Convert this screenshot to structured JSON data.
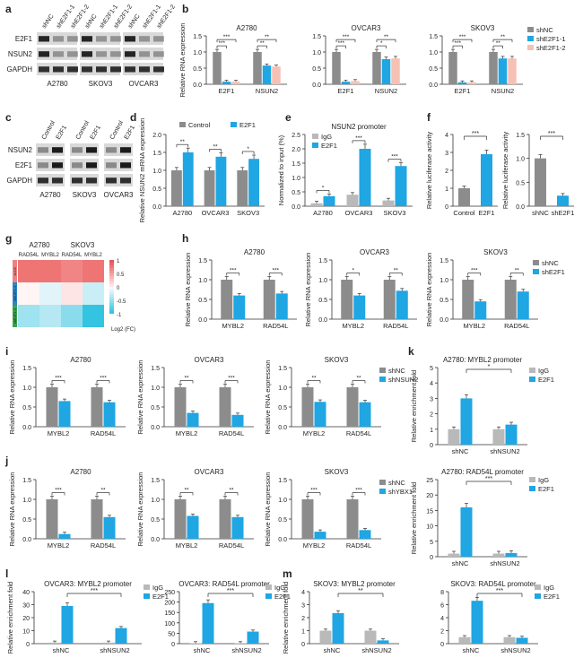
{
  "colors": {
    "gray": "#8c8c8c",
    "blue": "#1fa6e3",
    "pink": "#f6c1b4",
    "sig": "#222222",
    "lightgray": "#b9b9b9"
  },
  "panel_letters": [
    "a",
    "b",
    "c",
    "d",
    "e",
    "f",
    "g",
    "h",
    "i",
    "j",
    "k",
    "l",
    "m"
  ],
  "blots": {
    "a": {
      "lanes": [
        "shNC",
        "shE2F1-1",
        "shE2F1-2",
        "shNC",
        "shE2F1-1",
        "shE2F1-2",
        "shNC",
        "shE2F1-1",
        "shE2F1-2"
      ],
      "rows": [
        "E2F1",
        "NSUN2",
        "GAPDH"
      ],
      "groups": [
        "A2780",
        "SKOV3",
        "OVCAR3"
      ]
    },
    "c": {
      "lanes": [
        "Control",
        "E2F1",
        "Control",
        "E2F1",
        "Control",
        "E2F1"
      ],
      "rows": [
        "NSUN2",
        "E2F1",
        "GAPDH"
      ],
      "groups": [
        "A2780",
        "SKOV3",
        "OVCAR3"
      ]
    }
  },
  "heatmap_g": {
    "groups": [
      "A2780",
      "SKOV3"
    ],
    "columns": [
      "RAD54L",
      "MYBL2",
      "RAD54L",
      "MYBL2"
    ],
    "row_tags": [
      "shNC",
      "shE2F1-1",
      "shE2F1-2"
    ],
    "scale": [
      "1",
      "0.5",
      "0",
      "-0.5",
      "-1"
    ],
    "scale_label": "Log2 (FC)",
    "values": [
      [
        0.8,
        0.8,
        0.7,
        0.8
      ],
      [
        0.0,
        -0.1,
        0.1,
        -0.2
      ],
      [
        -0.4,
        -0.3,
        -0.5,
        -0.9
      ]
    ]
  },
  "chart_data": [
    {
      "id": "b1",
      "panel": "b",
      "type": "bar",
      "title": "A2780",
      "ylabel": "Relative RNA expression",
      "categories": [
        "E2F1",
        "NSUN2"
      ],
      "ylim": [
        0,
        1.5
      ],
      "yticks": [
        "0.0",
        "0.5",
        "1.0",
        "1.5"
      ],
      "series": [
        {
          "name": "shNC",
          "values": [
            1.0,
            1.0
          ]
        },
        {
          "name": "shE2F1-1",
          "values": [
            0.08,
            0.58
          ]
        },
        {
          "name": "shE2F1-2",
          "values": [
            0.08,
            0.55
          ]
        }
      ],
      "sig": [
        {
          "cat": 0,
          "a": 0,
          "b": 1,
          "text": "***"
        },
        {
          "cat": 0,
          "a": 0,
          "b": 2,
          "text": "***"
        },
        {
          "cat": 1,
          "a": 0,
          "b": 1,
          "text": "**"
        },
        {
          "cat": 1,
          "a": 0,
          "b": 2,
          "text": "**"
        }
      ]
    },
    {
      "id": "b2",
      "panel": "b",
      "type": "bar",
      "title": "OVCAR3",
      "ylabel": "",
      "categories": [
        "E2F1",
        "NSUN2"
      ],
      "ylim": [
        0,
        1.5
      ],
      "yticks": [
        "0.0",
        "0.5",
        "1.0",
        "1.5"
      ],
      "series": [
        {
          "name": "shNC",
          "values": [
            1.0,
            1.0
          ]
        },
        {
          "name": "shE2F1-1",
          "values": [
            0.08,
            0.78
          ]
        },
        {
          "name": "shE2F1-2",
          "values": [
            0.1,
            0.8
          ]
        }
      ],
      "sig": [
        {
          "cat": 0,
          "a": 0,
          "b": 1,
          "text": "***"
        },
        {
          "cat": 0,
          "a": 0,
          "b": 2,
          "text": "***"
        },
        {
          "cat": 1,
          "a": 0,
          "b": 1,
          "text": "*"
        },
        {
          "cat": 1,
          "a": 0,
          "b": 2,
          "text": "**"
        }
      ]
    },
    {
      "id": "b3",
      "panel": "b",
      "type": "bar",
      "title": "SKOV3",
      "ylabel": "",
      "categories": [
        "E2F1",
        "NSUN2"
      ],
      "ylim": [
        0,
        1.5
      ],
      "yticks": [
        "0.0",
        "0.5",
        "1.0",
        "1.5"
      ],
      "series": [
        {
          "name": "shNC",
          "values": [
            1.0,
            1.0
          ]
        },
        {
          "name": "shE2F1-1",
          "values": [
            0.06,
            0.8
          ]
        },
        {
          "name": "shE2F1-2",
          "values": [
            0.06,
            0.8
          ]
        }
      ],
      "sig": [
        {
          "cat": 0,
          "a": 0,
          "b": 1,
          "text": "***"
        },
        {
          "cat": 0,
          "a": 0,
          "b": 2,
          "text": "***"
        },
        {
          "cat": 1,
          "a": 0,
          "b": 1,
          "text": "**"
        },
        {
          "cat": 1,
          "a": 0,
          "b": 2,
          "text": "**"
        }
      ]
    },
    {
      "id": "d",
      "panel": "d",
      "type": "bar",
      "title": "",
      "ylabel": "Relative NSUN2 mRNA expression",
      "categories": [
        "A2780",
        "OVCAR3",
        "SKOV3"
      ],
      "ylim": [
        0,
        2.0
      ],
      "yticks": [
        "0.0",
        "0.5",
        "1.0",
        "1.5",
        "2.0"
      ],
      "series": [
        {
          "name": "Control",
          "values": [
            1.0,
            1.0,
            1.0
          ]
        },
        {
          "name": "E2F1",
          "values": [
            1.5,
            1.38,
            1.32
          ]
        }
      ],
      "sig": [
        {
          "cat": 0,
          "a": 0,
          "b": 1,
          "text": "**"
        },
        {
          "cat": 1,
          "a": 0,
          "b": 1,
          "text": "**"
        },
        {
          "cat": 2,
          "a": 0,
          "b": 1,
          "text": "*"
        }
      ]
    },
    {
      "id": "e",
      "panel": "e",
      "type": "bar",
      "title": "NSUN2 promoter",
      "ylabel": "Normalized to input (%)",
      "categories": [
        "A2780",
        "OVCAR3",
        "SKOV3"
      ],
      "ylim": [
        0,
        2.5
      ],
      "yticks": [
        "0.0",
        "0.5",
        "1.0",
        "1.5",
        "2.0",
        "2.5"
      ],
      "series": [
        {
          "name": "IgG",
          "values": [
            0.1,
            0.4,
            0.2
          ]
        },
        {
          "name": "E2F1",
          "values": [
            0.35,
            2.0,
            1.4
          ]
        }
      ],
      "sig": [
        {
          "cat": 0,
          "a": 0,
          "b": 1,
          "text": "*"
        },
        {
          "cat": 1,
          "a": 0,
          "b": 1,
          "text": "***"
        },
        {
          "cat": 2,
          "a": 0,
          "b": 1,
          "text": "***"
        }
      ]
    },
    {
      "id": "f1",
      "panel": "f",
      "type": "bar",
      "title": "",
      "ylabel": "Relative luciferase activity",
      "categories": [
        "Control",
        "E2F1"
      ],
      "ylim": [
        0,
        4
      ],
      "yticks": [
        "0",
        "1",
        "2",
        "3",
        "4"
      ],
      "series": [
        {
          "name": "",
          "values": [
            1.0,
            2.9
          ]
        }
      ],
      "sig": [
        {
          "span": [
            0,
            1
          ],
          "text": "***"
        }
      ]
    },
    {
      "id": "f2",
      "panel": "f",
      "type": "bar",
      "title": "",
      "ylabel": "Relative luciferase activity",
      "categories": [
        "shNC",
        "shE2F1"
      ],
      "ylim": [
        0,
        1.5
      ],
      "yticks": [
        "0.0",
        "0.5",
        "1.0",
        "1.5"
      ],
      "series": [
        {
          "name": "",
          "values": [
            1.0,
            0.22
          ]
        }
      ],
      "sig": [
        {
          "span": [
            0,
            1
          ],
          "text": "***"
        }
      ]
    },
    {
      "id": "h1",
      "panel": "h",
      "type": "bar",
      "title": "A2780",
      "ylabel": "Relative RNA expression",
      "categories": [
        "MYBL2",
        "RAD54L"
      ],
      "ylim": [
        0,
        1.5
      ],
      "yticks": [
        "0.0",
        "0.5",
        "1.0",
        "1.5"
      ],
      "series": [
        {
          "name": "shNC",
          "values": [
            1.0,
            1.0
          ]
        },
        {
          "name": "shE2F1",
          "values": [
            0.6,
            0.65
          ]
        }
      ],
      "sig": [
        {
          "cat": 0,
          "a": 0,
          "b": 1,
          "text": "***"
        },
        {
          "cat": 1,
          "a": 0,
          "b": 1,
          "text": "***"
        }
      ]
    },
    {
      "id": "h2",
      "panel": "h",
      "type": "bar",
      "title": "OVCAR3",
      "ylabel": "Relative RNA expression",
      "categories": [
        "MYBL2",
        "RAD54L"
      ],
      "ylim": [
        0,
        1.5
      ],
      "yticks": [
        "0.0",
        "0.5",
        "1.0",
        "1.5"
      ],
      "series": [
        {
          "name": "shNC",
          "values": [
            1.0,
            1.0
          ]
        },
        {
          "name": "shE2F1",
          "values": [
            0.6,
            0.72
          ]
        }
      ],
      "sig": [
        {
          "cat": 0,
          "a": 0,
          "b": 1,
          "text": "*"
        },
        {
          "cat": 1,
          "a": 0,
          "b": 1,
          "text": "**"
        }
      ]
    },
    {
      "id": "h3",
      "panel": "h",
      "type": "bar",
      "title": "SKOV3",
      "ylabel": "Relative RNA expression",
      "categories": [
        "MYBL2",
        "RAD54L"
      ],
      "ylim": [
        0,
        1.5
      ],
      "yticks": [
        "0.0",
        "0.5",
        "1.0",
        "1.5"
      ],
      "series": [
        {
          "name": "shNC",
          "values": [
            1.0,
            1.0
          ]
        },
        {
          "name": "shE2F1",
          "values": [
            0.45,
            0.7
          ]
        }
      ],
      "sig": [
        {
          "cat": 0,
          "a": 0,
          "b": 1,
          "text": "***"
        },
        {
          "cat": 1,
          "a": 0,
          "b": 1,
          "text": "**"
        }
      ]
    },
    {
      "id": "i1",
      "panel": "i",
      "type": "bar",
      "title": "A2780",
      "ylabel": "Relative RNA expression",
      "categories": [
        "MYBL2",
        "RAD54L"
      ],
      "ylim": [
        0,
        1.5
      ],
      "yticks": [
        "0.0",
        "0.5",
        "1.0",
        "1.5"
      ],
      "series": [
        {
          "name": "shNC",
          "values": [
            1.0,
            1.0
          ]
        },
        {
          "name": "shNSUN2",
          "values": [
            0.65,
            0.62
          ]
        }
      ],
      "sig": [
        {
          "cat": 0,
          "a": 0,
          "b": 1,
          "text": "***"
        },
        {
          "cat": 1,
          "a": 0,
          "b": 1,
          "text": "***"
        }
      ]
    },
    {
      "id": "i2",
      "panel": "i",
      "type": "bar",
      "title": "OVCAR3",
      "ylabel": "Relative RNA expression",
      "categories": [
        "MYBL2",
        "RAD54L"
      ],
      "ylim": [
        0,
        1.5
      ],
      "yticks": [
        "0.0",
        "0.5",
        "1.0",
        "1.5"
      ],
      "series": [
        {
          "name": "shNC",
          "values": [
            1.0,
            1.0
          ]
        },
        {
          "name": "shNSUN2",
          "values": [
            0.35,
            0.3
          ]
        }
      ],
      "sig": [
        {
          "cat": 0,
          "a": 0,
          "b": 1,
          "text": "**"
        },
        {
          "cat": 1,
          "a": 0,
          "b": 1,
          "text": "***"
        }
      ]
    },
    {
      "id": "i3",
      "panel": "i",
      "type": "bar",
      "title": "SKOV3",
      "ylabel": "Relative RNA expression",
      "categories": [
        "MYBL2",
        "RAD54L"
      ],
      "ylim": [
        0,
        1.5
      ],
      "yticks": [
        "0.0",
        "0.5",
        "1.0",
        "1.5"
      ],
      "series": [
        {
          "name": "shNC",
          "values": [
            1.0,
            1.0
          ]
        },
        {
          "name": "shNSUN2",
          "values": [
            0.63,
            0.62
          ]
        }
      ],
      "sig": [
        {
          "cat": 0,
          "a": 0,
          "b": 1,
          "text": "**"
        },
        {
          "cat": 1,
          "a": 0,
          "b": 1,
          "text": "**"
        }
      ]
    },
    {
      "id": "j1",
      "panel": "j",
      "type": "bar",
      "title": "A2780",
      "ylabel": "Relative RNA expression",
      "categories": [
        "MYBL2",
        "RAD54L"
      ],
      "ylim": [
        0,
        1.5
      ],
      "yticks": [
        "0.0",
        "0.5",
        "1.0",
        "1.5"
      ],
      "series": [
        {
          "name": "shNC",
          "values": [
            1.0,
            1.0
          ]
        },
        {
          "name": "shYBX1",
          "values": [
            0.12,
            0.55
          ]
        }
      ],
      "sig": [
        {
          "cat": 0,
          "a": 0,
          "b": 1,
          "text": "***"
        },
        {
          "cat": 1,
          "a": 0,
          "b": 1,
          "text": "**"
        }
      ]
    },
    {
      "id": "j2",
      "panel": "j",
      "type": "bar",
      "title": "OVCAR3",
      "ylabel": "Relative RNA expression",
      "categories": [
        "MYBL2",
        "RAD54L"
      ],
      "ylim": [
        0,
        1.5
      ],
      "yticks": [
        "0.0",
        "0.5",
        "1.0",
        "1.5"
      ],
      "series": [
        {
          "name": "shNC",
          "values": [
            1.0,
            1.0
          ]
        },
        {
          "name": "shYBX1",
          "values": [
            0.58,
            0.55
          ]
        }
      ],
      "sig": [
        {
          "cat": 0,
          "a": 0,
          "b": 1,
          "text": "**"
        },
        {
          "cat": 1,
          "a": 0,
          "b": 1,
          "text": "**"
        }
      ]
    },
    {
      "id": "j3",
      "panel": "j",
      "type": "bar",
      "title": "SKOV3",
      "ylabel": "Relative RNA expression",
      "categories": [
        "MYBL2",
        "RAD54L"
      ],
      "ylim": [
        0,
        1.5
      ],
      "yticks": [
        "0.0",
        "0.5",
        "1.0",
        "1.5"
      ],
      "series": [
        {
          "name": "shNC",
          "values": [
            1.0,
            1.0
          ]
        },
        {
          "name": "shYBX1",
          "values": [
            0.18,
            0.22
          ]
        }
      ],
      "sig": [
        {
          "cat": 0,
          "a": 0,
          "b": 1,
          "text": "***"
        },
        {
          "cat": 1,
          "a": 0,
          "b": 1,
          "text": "***"
        }
      ]
    },
    {
      "id": "k1",
      "panel": "k",
      "type": "bar",
      "title": "A2780: MYBL2 promoter",
      "ylabel": "Relative enrichment fold",
      "categories": [
        "shNC",
        "shNSUN2"
      ],
      "ylim": [
        0,
        5
      ],
      "yticks": [
        "0",
        "1",
        "2",
        "3",
        "4",
        "5"
      ],
      "series": [
        {
          "name": "IgG",
          "values": [
            1.0,
            1.0
          ]
        },
        {
          "name": "E2F1",
          "values": [
            3.0,
            1.3
          ]
        }
      ],
      "sig": [
        {
          "span": [
            1,
            1
          ],
          "text": "*"
        }
      ]
    },
    {
      "id": "k2",
      "panel": "k",
      "type": "bar",
      "title": "A2780: RAD54L promoter",
      "ylabel": "Relative enrichment fold",
      "categories": [
        "shNC",
        "shNSUN2"
      ],
      "ylim": [
        0,
        25
      ],
      "yticks": [
        "0",
        "5",
        "10",
        "15",
        "20",
        "25"
      ],
      "series": [
        {
          "name": "IgG",
          "values": [
            1.0,
            1.0
          ]
        },
        {
          "name": "E2F1",
          "values": [
            16.0,
            1.2
          ]
        }
      ],
      "sig": [
        {
          "span": [
            1,
            1
          ],
          "text": "***"
        }
      ]
    },
    {
      "id": "l1",
      "panel": "l",
      "type": "bar",
      "title": "OVCAR3: MYBL2 promoter",
      "ylabel": "Relative enrichment fold",
      "categories": [
        "shNC",
        "shNSUN2"
      ],
      "ylim": [
        0,
        40
      ],
      "yticks": [
        "0",
        "10",
        "20",
        "30",
        "40"
      ],
      "series": [
        {
          "name": "IgG",
          "values": [
            0.8,
            0.8
          ]
        },
        {
          "name": "E2F1",
          "values": [
            29.0,
            12.0
          ]
        }
      ],
      "sig": [
        {
          "span": [
            1,
            1
          ],
          "text": "***"
        }
      ]
    },
    {
      "id": "l2",
      "panel": "l",
      "type": "bar",
      "title": "OVCAR3: RAD54L promoter",
      "ylabel": "",
      "categories": [
        "shNC",
        "shNSUN2"
      ],
      "ylim": [
        0,
        250
      ],
      "yticks": [
        "0",
        "50",
        "100",
        "150",
        "200",
        "250"
      ],
      "series": [
        {
          "name": "IgG",
          "values": [
            2,
            2
          ]
        },
        {
          "name": "E2F1",
          "values": [
            195,
            58
          ]
        }
      ],
      "sig": [
        {
          "span": [
            1,
            1
          ],
          "text": "***"
        }
      ]
    },
    {
      "id": "m1",
      "panel": "m",
      "type": "bar",
      "title": "SKOV3: MYBL2 promoter",
      "ylabel": "Relative enrichment fold",
      "categories": [
        "shNC",
        "shNSUN2"
      ],
      "ylim": [
        0,
        4
      ],
      "yticks": [
        "0",
        "1",
        "2",
        "3",
        "4"
      ],
      "series": [
        {
          "name": "IgG",
          "values": [
            1.0,
            1.0
          ]
        },
        {
          "name": "E2F1",
          "values": [
            2.35,
            0.25
          ]
        }
      ],
      "sig": [
        {
          "span": [
            1,
            1
          ],
          "text": "**"
        }
      ]
    },
    {
      "id": "m2",
      "panel": "m",
      "type": "bar",
      "title": "SKOV3: RAD54L promoter",
      "ylabel": "",
      "categories": [
        "shNC",
        "shNSUN2"
      ],
      "ylim": [
        0,
        8
      ],
      "yticks": [
        "0",
        "2",
        "4",
        "6",
        "8"
      ],
      "series": [
        {
          "name": "IgG",
          "values": [
            1.0,
            1.0
          ]
        },
        {
          "name": "E2F1",
          "values": [
            6.6,
            0.9
          ]
        }
      ],
      "sig": [
        {
          "span": [
            1,
            1
          ],
          "text": "***"
        }
      ]
    }
  ]
}
